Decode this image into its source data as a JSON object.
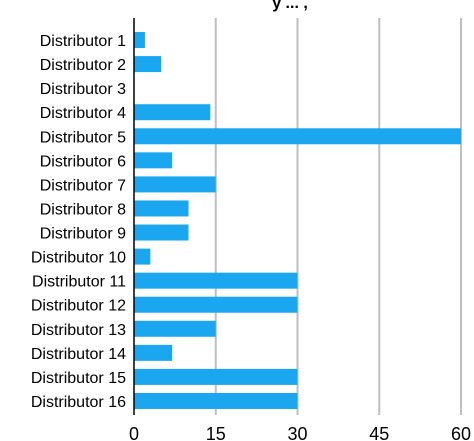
{
  "chart_data": {
    "type": "bar",
    "orientation": "horizontal",
    "title": "y ... ,",
    "xlabel": "",
    "ylabel": "",
    "categories": [
      "Distributor 1",
      "Distributor 2",
      "Distributor 3",
      "Distributor 4",
      "Distributor 5",
      "Distributor 6",
      "Distributor 7",
      "Distributor 8",
      "Distributor 9",
      "Distributor 10",
      "Distributor 11",
      "Distributor 12",
      "Distributor 13",
      "Distributor 14",
      "Distributor 15",
      "Distributor 16"
    ],
    "values": [
      2,
      5,
      0,
      14,
      60,
      7,
      15,
      10,
      10,
      3,
      30,
      30,
      15,
      7,
      30,
      30
    ],
    "xlim": [
      0,
      60
    ],
    "xticks": [
      0,
      15,
      30,
      45,
      60
    ],
    "grid": "vertical",
    "legend": "none",
    "colors": {
      "bar": "#1aa7f0",
      "grid": "#bfbfbf",
      "axis": "#000000"
    }
  }
}
